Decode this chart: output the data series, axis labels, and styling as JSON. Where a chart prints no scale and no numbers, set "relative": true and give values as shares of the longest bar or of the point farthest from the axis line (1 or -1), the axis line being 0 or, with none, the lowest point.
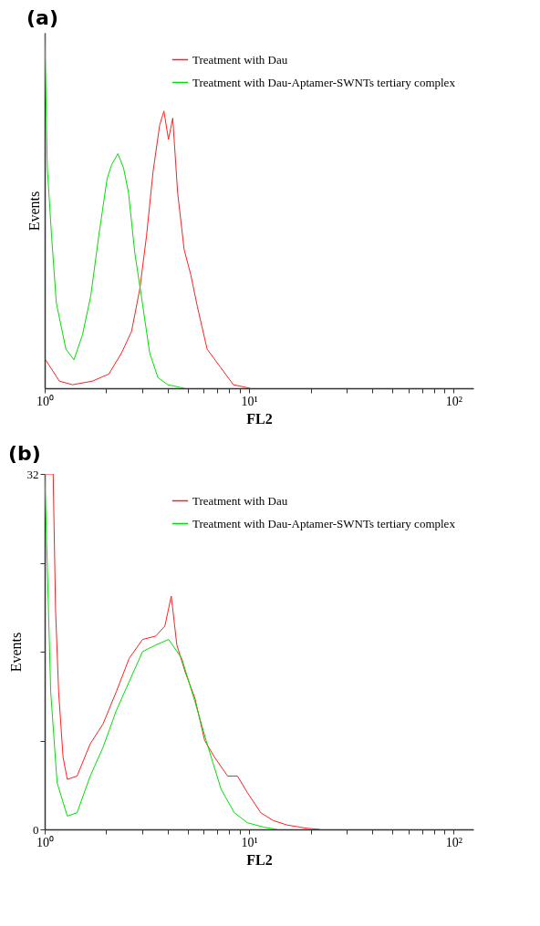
{
  "chart_data": [
    {
      "type": "line",
      "title": "(a)",
      "xlabel": "FL2",
      "ylabel": "Events",
      "log": "x",
      "relative": true,
      "legend": "top right",
      "grid": false,
      "marker": "none",
      "line_style": "solid",
      "xlim": [
        1,
        125
      ],
      "xticks": [
        {
          "value": 1,
          "label": "10⁰"
        },
        {
          "value": 2,
          "label": null
        },
        {
          "value": 3,
          "label": null
        },
        {
          "value": 4,
          "label": null
        },
        {
          "value": 5,
          "label": null
        },
        {
          "value": 6,
          "label": null
        },
        {
          "value": 7,
          "label": null
        },
        {
          "value": 8,
          "label": null
        },
        {
          "value": 9,
          "label": null
        },
        {
          "value": 10,
          "label": "10¹"
        },
        {
          "value": 20,
          "label": null
        },
        {
          "value": 30,
          "label": null
        },
        {
          "value": 40,
          "label": null
        },
        {
          "value": 50,
          "label": null
        },
        {
          "value": 60,
          "label": null
        },
        {
          "value": 70,
          "label": null
        },
        {
          "value": 80,
          "label": null
        },
        {
          "value": 90,
          "label": null
        },
        {
          "value": 100,
          "label": "10²"
        }
      ],
      "series": [
        {
          "name": "Treatment with Dau",
          "color": "#ff2020",
          "x": [
            1.01,
            1.18,
            1.37,
            1.71,
            2.06,
            2.38,
            2.66,
            2.92,
            3.15,
            3.39,
            3.65,
            3.83,
            4.03,
            4.23,
            4.47,
            4.81,
            5.18,
            5.58,
            6.23,
            7.22,
            8.37,
            10.1
          ],
          "values": [
            0.08,
            0.02,
            0.01,
            0.02,
            0.04,
            0.1,
            0.16,
            0.28,
            0.43,
            0.61,
            0.74,
            0.78,
            0.7,
            0.76,
            0.55,
            0.39,
            0.32,
            0.23,
            0.11,
            0.06,
            0.01,
            0
          ]
        },
        {
          "name": "Treatment with Dau-Aptamer-SWNTs tertiary complex",
          "color": "#00e000",
          "x": [
            1.0,
            1.03,
            1.08,
            1.14,
            1.27,
            1.39,
            1.53,
            1.68,
            1.84,
            2.02,
            2.13,
            2.28,
            2.43,
            2.57,
            2.76,
            2.97,
            3.26,
            3.58,
            4.0,
            4.81
          ],
          "values": [
            1,
            0.62,
            0.43,
            0.24,
            0.11,
            0.08,
            0.15,
            0.26,
            0.43,
            0.59,
            0.63,
            0.66,
            0.62,
            0.55,
            0.38,
            0.26,
            0.1,
            0.03,
            0.01,
            0
          ]
        }
      ]
    },
    {
      "type": "line",
      "title": "(b)",
      "xlabel": "FL2",
      "ylabel": "Events",
      "log": "x",
      "legend": "top right",
      "grid": false,
      "marker": "none",
      "line_style": "solid",
      "xlim": [
        1,
        125
      ],
      "xticks": [
        {
          "value": 1,
          "label": "10⁰"
        },
        {
          "value": 2,
          "label": null
        },
        {
          "value": 3,
          "label": null
        },
        {
          "value": 4,
          "label": null
        },
        {
          "value": 5,
          "label": null
        },
        {
          "value": 6,
          "label": null
        },
        {
          "value": 7,
          "label": null
        },
        {
          "value": 8,
          "label": null
        },
        {
          "value": 9,
          "label": null
        },
        {
          "value": 10,
          "label": "10¹"
        },
        {
          "value": 20,
          "label": null
        },
        {
          "value": 30,
          "label": null
        },
        {
          "value": 40,
          "label": null
        },
        {
          "value": 50,
          "label": null
        },
        {
          "value": 60,
          "label": null
        },
        {
          "value": 70,
          "label": null
        },
        {
          "value": 80,
          "label": null
        },
        {
          "value": 90,
          "label": null
        },
        {
          "value": 100,
          "label": "10²"
        }
      ],
      "ylim": [
        0,
        32
      ],
      "yticks": [
        0,
        {
          "value": 8,
          "label": null
        },
        {
          "value": 16,
          "label": null
        },
        {
          "value": 24,
          "label": null
        },
        32
      ],
      "series": [
        {
          "name": "Treatment with Dau",
          "color": "#ff2020",
          "x": [
            1.0,
            1.1,
            1.13,
            1.17,
            1.23,
            1.29,
            1.44,
            1.67,
            1.93,
            2.24,
            2.59,
            3.01,
            3.49,
            3.87,
            4.16,
            4.43,
            4.86,
            5.43,
            6.06,
            6.77,
            7.85,
            8.77,
            9.81,
            11.4,
            13.1,
            15.3,
            19.1,
            22.2
          ],
          "values": [
            32,
            32,
            19.8,
            12.4,
            6.5,
            4.5,
            4.8,
            7.7,
            9.5,
            12.4,
            15.4,
            17.1,
            17.4,
            18.3,
            21.0,
            16.6,
            14.2,
            11.8,
            8.0,
            6.5,
            4.8,
            4.8,
            3.3,
            1.5,
            0.8,
            0.4,
            0.1,
            0
          ]
        },
        {
          "name": "Treatment with Dau-Aptamer-SWNTs tertiary complex",
          "color": "#00e000",
          "x": [
            1.0,
            1.03,
            1.07,
            1.15,
            1.29,
            1.44,
            1.67,
            1.93,
            2.24,
            2.59,
            3.01,
            3.49,
            4.04,
            4.68,
            5.43,
            6.3,
            7.3,
            8.46,
            9.81,
            11.8,
            13.7
          ],
          "values": [
            32,
            23.6,
            12.4,
            4.2,
            1.2,
            1.5,
            4.8,
            7.4,
            10.7,
            13.3,
            16.0,
            16.6,
            17.1,
            15.4,
            11.5,
            7.4,
            3.6,
            1.5,
            0.6,
            0.2,
            0
          ]
        }
      ]
    }
  ]
}
